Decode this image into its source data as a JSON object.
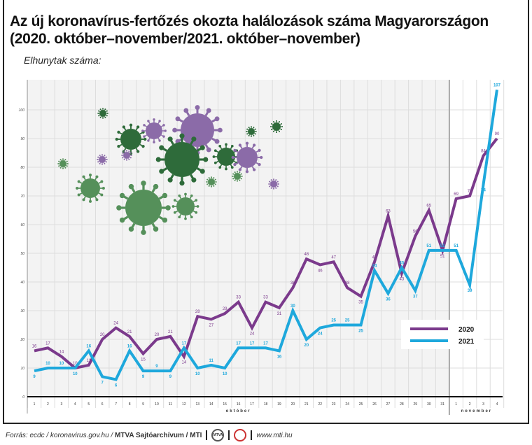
{
  "title_line1": "Az új koronavírus-fertőzés okozta halálozások száma Magyarországon",
  "title_line2": "(2020. október–november/2021. október–november)",
  "subtitle": "Elhunytak száma:",
  "footer": {
    "source": "Forrás: ecdc / koronavirus.gov.hu / ",
    "archive": "MTVA Sajtóarchívum / MTI",
    "logo1": "MTVA",
    "url": "www.mti.hu"
  },
  "colors": {
    "series_2020": "#7b3a8c",
    "series_2021": "#1ea8dc",
    "virus_dark": "#2e6b3a",
    "virus_green": "#55905a",
    "virus_purple": "#8b6ba8",
    "october_bg": "#f3f3f3"
  },
  "chart_data": {
    "type": "line",
    "title": "Az új koronavírus-fertőzés okozta halálozások száma Magyarországon",
    "ylabel": "Elhunytak száma:",
    "ylim": [
      0,
      100
    ],
    "yticks": [
      0,
      10,
      20,
      30,
      40,
      50,
      60,
      70,
      80,
      90,
      100
    ],
    "grid": true,
    "legend_position": "bottom-right",
    "x": [
      "1",
      "2",
      "3",
      "4",
      "5",
      "6",
      "7",
      "8",
      "9",
      "10",
      "11",
      "12",
      "13",
      "14",
      "15",
      "16",
      "17",
      "18",
      "19",
      "20",
      "21",
      "22",
      "23",
      "24",
      "25",
      "26",
      "27",
      "28",
      "29",
      "30",
      "31",
      "1",
      "2",
      "3",
      "4"
    ],
    "month_labels": [
      {
        "label": "október",
        "from": 1,
        "to": 31
      },
      {
        "label": "november",
        "from": 32,
        "to": 35
      }
    ],
    "series": [
      {
        "name": "2020",
        "values": [
          16,
          17,
          14,
          10,
          11,
          20,
          24,
          21,
          15,
          20,
          21,
          14,
          28,
          27,
          29,
          33,
          24,
          33,
          31,
          38,
          48,
          46,
          47,
          38,
          35,
          47,
          63,
          43,
          56,
          65,
          51,
          69,
          70,
          84,
          90
        ]
      },
      {
        "name": "2021",
        "values": [
          9,
          10,
          10,
          10,
          16,
          7,
          6,
          16,
          9,
          9,
          9,
          17,
          10,
          11,
          10,
          17,
          17,
          17,
          16,
          30,
          20,
          24,
          25,
          25,
          25,
          44,
          36,
          45,
          37,
          51,
          51,
          51,
          39,
          74,
          107
        ]
      }
    ]
  }
}
